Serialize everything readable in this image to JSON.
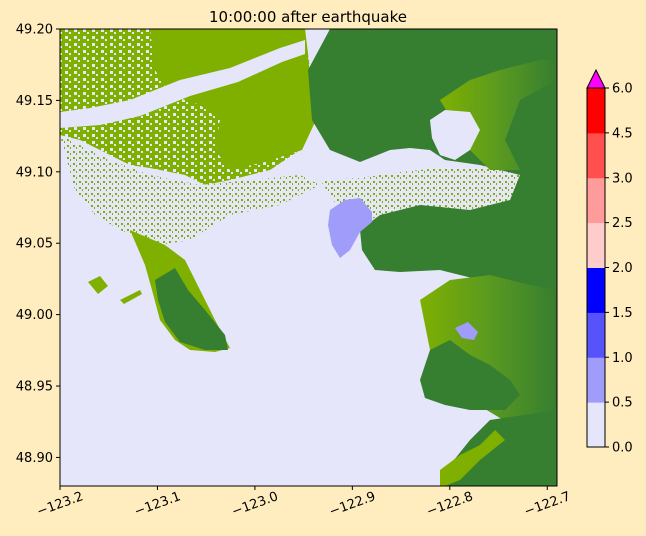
{
  "chart_data": {
    "type": "heatmap",
    "title": "10:00:00 after earthquake",
    "xlabel": "",
    "ylabel": "",
    "xlim": [
      -123.2,
      -122.69
    ],
    "ylim": [
      48.88,
      49.2
    ],
    "x_ticks": [
      "−123.2",
      "−123.1",
      "−123.0",
      "−122.9",
      "−122.8",
      "−122.7"
    ],
    "x_tick_values": [
      -123.2,
      -123.1,
      -123.0,
      -122.9,
      -122.8,
      -122.7
    ],
    "y_ticks": [
      "48.90",
      "48.95",
      "49.00",
      "49.05",
      "49.10",
      "49.15",
      "49.20"
    ],
    "y_tick_values": [
      48.9,
      48.95,
      49.0,
      49.05,
      49.1,
      49.15,
      49.2
    ],
    "colorbar": {
      "levels": [
        0.0,
        0.5,
        1.0,
        1.5,
        2.0,
        2.5,
        3.0,
        4.5,
        6.0
      ],
      "tick_labels": [
        "0.0",
        "0.5",
        "1.0",
        "1.5",
        "2.0",
        "2.5",
        "3.0",
        "4.5",
        "6.0"
      ],
      "colors": [
        "#e6e6fa",
        "#a09cfa",
        "#5653fa",
        "#0000ff",
        "#ffcccc",
        "#ff9b9b",
        "#ff4f4f",
        "#ff0000"
      ],
      "extend_color": "#ff00ff"
    },
    "colors": {
      "water": "#e6e6fa",
      "land_low": "#7fb000",
      "land_high": "#367e30",
      "inundation_shallow": "#a09cfa"
    }
  }
}
